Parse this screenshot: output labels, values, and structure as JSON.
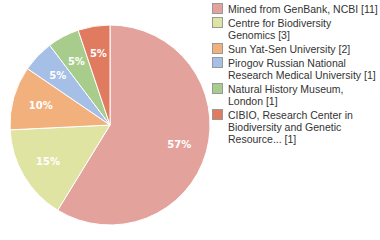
{
  "chart_data": {
    "type": "pie",
    "categories": [
      "Mined from GenBank, NCBI [11]",
      "Centre for Biodiversity Genomics [3]",
      "Sun Yat-Sen University [2]",
      "Pirogov Russian National Research Medical University [1]",
      "Natural History Museum, London [1]",
      "CIBIO, Research Center in Biodiversity and Genetic Resource... [1]"
    ],
    "values": [
      57,
      15,
      10,
      5,
      5,
      5
    ],
    "value_labels": [
      "57%",
      "15%",
      "10%",
      "5%",
      "5%",
      "5%"
    ],
    "colors": [
      "#e3a39c",
      "#dfe4a3",
      "#f2b07c",
      "#a6bfe6",
      "#a8cc8c",
      "#e07b60"
    ],
    "data_labels": true
  }
}
